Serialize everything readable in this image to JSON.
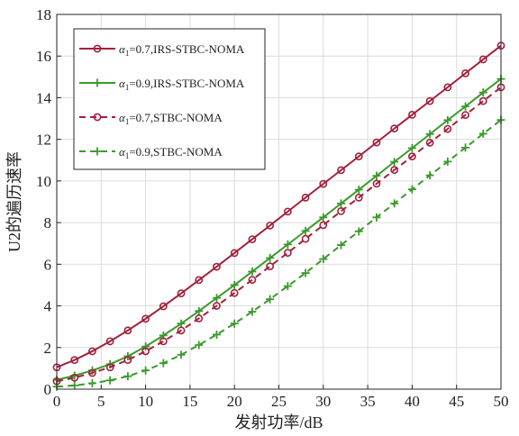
{
  "chart_data": {
    "type": "line",
    "title": "",
    "xlabel": "发射功率/dB",
    "ylabel": "U2的遍历速率",
    "xlim": [
      0,
      50
    ],
    "ylim": [
      0,
      18
    ],
    "xticks": [
      0,
      5,
      10,
      15,
      20,
      25,
      30,
      35,
      40,
      45,
      50
    ],
    "yticks": [
      0,
      2,
      4,
      6,
      8,
      10,
      12,
      14,
      16,
      18
    ],
    "grid": true,
    "legend_position": "top-left",
    "x": [
      0,
      2,
      4,
      6,
      8,
      10,
      12,
      14,
      16,
      18,
      20,
      22,
      24,
      26,
      28,
      30,
      32,
      34,
      36,
      38,
      40,
      42,
      44,
      46,
      48,
      50
    ],
    "series": [
      {
        "name": "α1=0.7,IRS-STBC-NOMA",
        "legend_prefix": "α",
        "legend_sub": "1",
        "legend_rest": "=0.7,IRS-STBC-NOMA",
        "color": "#a2203c",
        "dash": "solid",
        "marker": "circle",
        "values": [
          1.05,
          1.4,
          1.82,
          2.3,
          2.82,
          3.38,
          3.98,
          4.6,
          5.24,
          5.88,
          6.54,
          7.2,
          7.86,
          8.53,
          9.2,
          9.86,
          10.52,
          11.18,
          11.85,
          12.52,
          13.18,
          13.84,
          14.5,
          15.17,
          15.84,
          16.5
        ]
      },
      {
        "name": "α1=0.9,IRS-STBC-NOMA",
        "legend_prefix": "α",
        "legend_sub": "1",
        "legend_rest": "=0.9,IRS-STBC-NOMA",
        "color": "#3a9a2c",
        "dash": "solid",
        "marker": "plus",
        "values": [
          0.45,
          0.65,
          0.9,
          1.2,
          1.58,
          2.05,
          2.58,
          3.15,
          3.75,
          4.38,
          5.0,
          5.65,
          6.3,
          6.95,
          7.6,
          8.25,
          8.92,
          9.58,
          10.25,
          10.92,
          11.58,
          12.25,
          12.92,
          13.58,
          14.25,
          14.9
        ]
      },
      {
        "name": "α1=0.7,STBC-NOMA",
        "legend_prefix": "α",
        "legend_sub": "1",
        "legend_rest": "=0.7,STBC-NOMA",
        "color": "#a2203c",
        "dash": "dashed",
        "marker": "circle",
        "values": [
          0.38,
          0.55,
          0.78,
          1.05,
          1.4,
          1.82,
          2.3,
          2.82,
          3.4,
          4.0,
          4.62,
          5.25,
          5.9,
          6.55,
          7.22,
          7.88,
          8.55,
          9.2,
          9.87,
          10.53,
          11.18,
          11.84,
          12.5,
          13.17,
          13.84,
          14.5
        ]
      },
      {
        "name": "α1=0.9,STBC-NOMA",
        "legend_prefix": "α",
        "legend_sub": "1",
        "legend_rest": "=0.9,STBC-NOMA",
        "color": "#3a9a2c",
        "dash": "dashed",
        "marker": "plus",
        "values": [
          0.12,
          0.18,
          0.28,
          0.42,
          0.62,
          0.9,
          1.25,
          1.65,
          2.12,
          2.62,
          3.15,
          3.72,
          4.32,
          4.95,
          5.58,
          6.25,
          6.92,
          7.58,
          8.25,
          8.92,
          9.6,
          10.27,
          10.93,
          11.6,
          12.27,
          12.93
        ]
      }
    ]
  }
}
